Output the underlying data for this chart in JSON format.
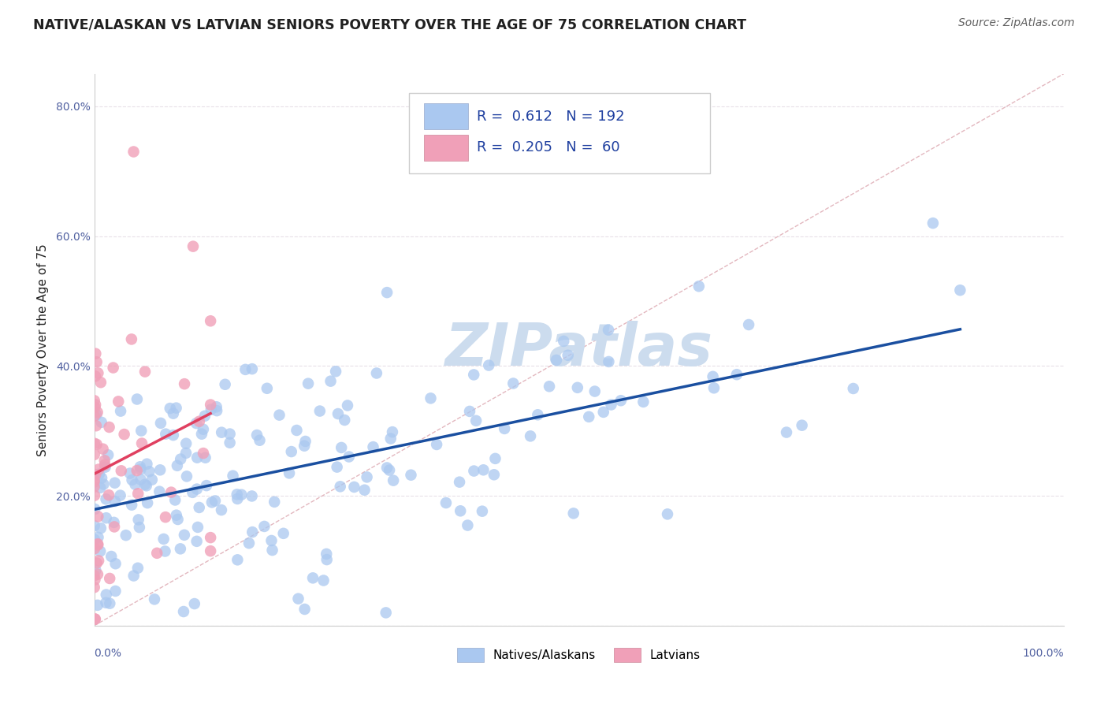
{
  "title": "NATIVE/ALASKAN VS LATVIAN SENIORS POVERTY OVER THE AGE OF 75 CORRELATION CHART",
  "source": "Source: ZipAtlas.com",
  "ylabel": "Seniors Poverty Over the Age of 75",
  "blue_scatter_color": "#aac8f0",
  "pink_scatter_color": "#f0a0b8",
  "blue_line_color": "#1a4fa0",
  "pink_line_color": "#e04060",
  "diagonal_color": "#e0b0b8",
  "watermark_color": "#ccdcee",
  "background_color": "#ffffff",
  "title_color": "#202020",
  "source_color": "#606060",
  "tick_color": "#5060a0",
  "grid_color": "#e8e0e8",
  "R_blue": 0.612,
  "N_blue": 192,
  "R_pink": 0.205,
  "N_pink": 60,
  "legend_entries": [
    {
      "label": "Natives/Alaskans",
      "color": "#aac8f0",
      "R": "0.612",
      "N": "192"
    },
    {
      "label": "Latvians",
      "color": "#f0a0b8",
      "R": "0.205",
      "N": "60"
    }
  ]
}
